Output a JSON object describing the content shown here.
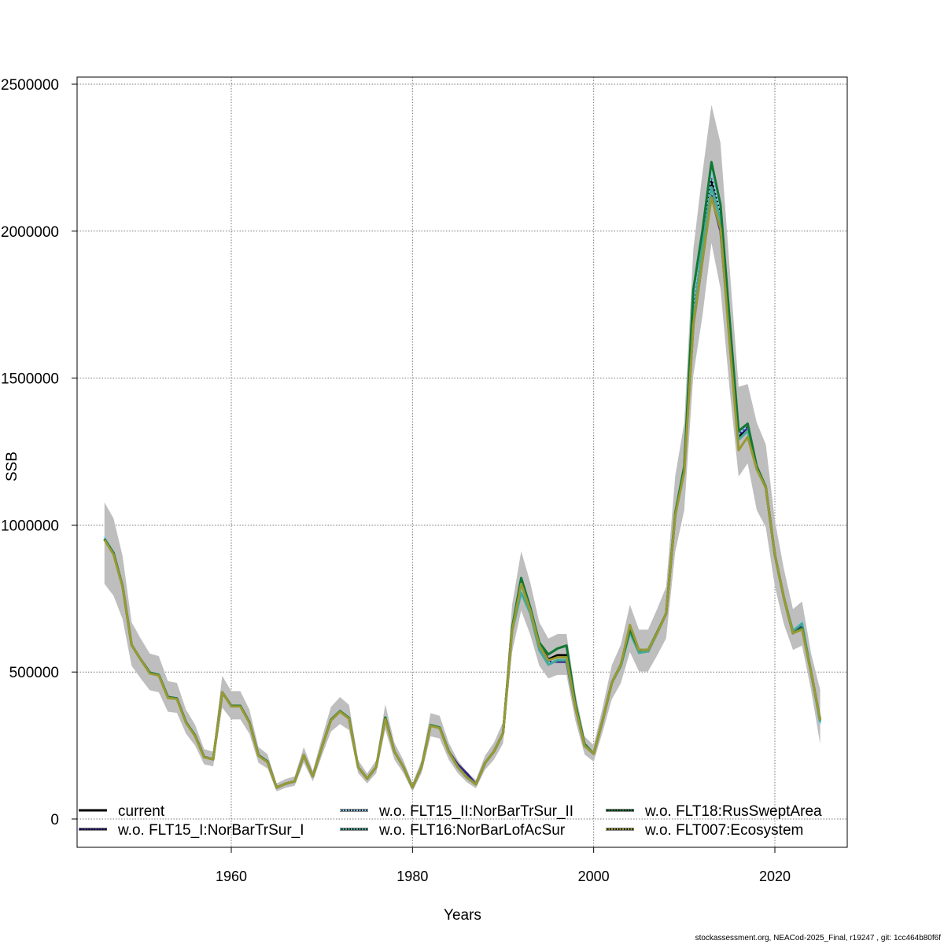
{
  "chart_data": {
    "type": "line",
    "xlabel": "Years",
    "ylabel": "SSB",
    "xlim": [
      1943,
      2028
    ],
    "ylim": [
      -95000,
      2520000
    ],
    "x_ticks": [
      "1960",
      "1980",
      "2000",
      "2020"
    ],
    "y_ticks": [
      "0",
      "500000",
      "1000000",
      "1500000",
      "2000000",
      "2500000"
    ],
    "grid": true,
    "legend_placement": "bottom",
    "x": [
      1946,
      1947,
      1948,
      1949,
      1950,
      1951,
      1952,
      1953,
      1954,
      1955,
      1956,
      1957,
      1958,
      1959,
      1960,
      1961,
      1962,
      1963,
      1964,
      1965,
      1966,
      1967,
      1968,
      1969,
      1970,
      1971,
      1972,
      1973,
      1974,
      1975,
      1976,
      1977,
      1978,
      1979,
      1980,
      1981,
      1982,
      1983,
      1984,
      1985,
      1986,
      1987,
      1988,
      1989,
      1990,
      1991,
      1992,
      1993,
      1994,
      1995,
      1996,
      1997,
      1998,
      1999,
      2000,
      2001,
      2002,
      2003,
      2004,
      2005,
      2006,
      2007,
      2008,
      2009,
      2010,
      2011,
      2012,
      2013,
      2014,
      2015,
      2016,
      2017,
      2018,
      2019,
      2020,
      2021,
      2022,
      2023,
      2024,
      2025
    ],
    "confidence_band": {
      "color": "#bebebe",
      "upper": [
        1077000,
        1023000,
        895000,
        669000,
        614000,
        563000,
        554000,
        469000,
        463000,
        372000,
        321000,
        238000,
        229000,
        487000,
        435000,
        435000,
        372000,
        245000,
        220000,
        121000,
        136000,
        145000,
        245000,
        164000,
        276000,
        381000,
        415000,
        388000,
        200000,
        155000,
        200000,
        390000,
        260000,
        200000,
        121000,
        200000,
        360000,
        351000,
        260000,
        200000,
        160000,
        133000,
        215000,
        260000,
        330000,
        729000,
        911000,
        805000,
        669000,
        614000,
        629000,
        629000,
        426000,
        281000,
        251000,
        381000,
        523000,
        593000,
        729000,
        644000,
        644000,
        714000,
        790000,
        1167000,
        1349000,
        1939000,
        2196000,
        2430000,
        2300000,
        1878000,
        1470000,
        1480000,
        1349000,
        1274000,
        1016000,
        850000,
        714000,
        740000,
        563000,
        440000
      ],
      "lower": [
        800000,
        760000,
        680000,
        521000,
        478000,
        438000,
        431000,
        365000,
        361000,
        290000,
        250000,
        186000,
        179000,
        379000,
        339000,
        339000,
        290000,
        191000,
        172000,
        94000,
        106000,
        113000,
        191000,
        128000,
        215000,
        297000,
        323000,
        302000,
        156000,
        121000,
        156000,
        304000,
        202000,
        156000,
        94000,
        156000,
        281000,
        274000,
        202000,
        156000,
        125000,
        104000,
        167000,
        202000,
        257000,
        568000,
        709000,
        627000,
        521000,
        478000,
        490000,
        490000,
        332000,
        219000,
        195000,
        297000,
        407000,
        462000,
        568000,
        502000,
        502000,
        556000,
        615000,
        909000,
        1051000,
        1510000,
        1710000,
        1960000,
        1804000,
        1463000,
        1165000,
        1210000,
        1051000,
        992000,
        791000,
        662000,
        575000,
        590000,
        438000,
        255000
      ]
    },
    "series": [
      {
        "name": "current",
        "color": "#000000",
        "dash": "solid",
        "values": [
          953000,
          905000,
          792000,
          592000,
          543000,
          498000,
          490000,
          415000,
          410000,
          329000,
          284000,
          211000,
          203000,
          431000,
          385000,
          385000,
          329000,
          217000,
          195000,
          107000,
          120000,
          128000,
          217000,
          145000,
          244000,
          337000,
          367000,
          343000,
          177000,
          137000,
          177000,
          345000,
          230000,
          177000,
          107000,
          177000,
          319000,
          311000,
          230000,
          177000,
          142000,
          118000,
          190000,
          230000,
          292000,
          645000,
          806000,
          712000,
          592000,
          543000,
          557000,
          557000,
          377000,
          249000,
          222000,
          337000,
          463000,
          525000,
          645000,
          570000,
          570000,
          632000,
          699000,
          1033000,
          1194000,
          1716000,
          1943000,
          2176000,
          2050000,
          1662000,
          1301000,
          1333000,
          1194000,
          1127000,
          899000,
          752000,
          632000,
          650000,
          498000,
          337000
        ]
      },
      {
        "name": "w.o. FLT15_I:NorBarTrSur_I",
        "color": "#332288",
        "dash": "solid",
        "values": [
          953000,
          905000,
          792000,
          592000,
          543000,
          498000,
          490000,
          415000,
          410000,
          329000,
          284000,
          211000,
          203000,
          431000,
          385000,
          385000,
          329000,
          217000,
          195000,
          107000,
          120000,
          128000,
          217000,
          145000,
          244000,
          337000,
          367000,
          343000,
          177000,
          137000,
          177000,
          345000,
          230000,
          177000,
          107000,
          177000,
          319000,
          311000,
          230000,
          185000,
          155000,
          118000,
          190000,
          230000,
          292000,
          645000,
          806000,
          712000,
          592000,
          535000,
          535000,
          535000,
          377000,
          249000,
          222000,
          337000,
          463000,
          525000,
          645000,
          570000,
          570000,
          632000,
          699000,
          1033000,
          1194000,
          1680000,
          1900000,
          2120000,
          2000000,
          1640000,
          1310000,
          1330000,
          1194000,
          1127000,
          899000,
          752000,
          632000,
          660000,
          498000,
          337000
        ]
      },
      {
        "name": "w.o. FLT15_II:NorBarTrSur_II",
        "color": "#88CCEE",
        "dash": "dotted",
        "values": [
          960000,
          905000,
          792000,
          592000,
          543000,
          498000,
          490000,
          415000,
          410000,
          329000,
          284000,
          211000,
          203000,
          431000,
          385000,
          385000,
          329000,
          217000,
          195000,
          107000,
          120000,
          128000,
          217000,
          145000,
          244000,
          337000,
          367000,
          343000,
          177000,
          137000,
          177000,
          345000,
          230000,
          177000,
          107000,
          177000,
          319000,
          311000,
          230000,
          177000,
          142000,
          118000,
          190000,
          230000,
          292000,
          640000,
          790000,
          705000,
          580000,
          530000,
          545000,
          545000,
          377000,
          249000,
          222000,
          337000,
          463000,
          525000,
          640000,
          565000,
          570000,
          632000,
          699000,
          1033000,
          1194000,
          1740000,
          1990000,
          2200000,
          2060000,
          1680000,
          1310000,
          1340000,
          1194000,
          1127000,
          899000,
          752000,
          640000,
          670000,
          498000,
          320000
        ]
      },
      {
        "name": "w.o. FLT16:NorBarLofAcSur",
        "color": "#44AA99",
        "dash": "solid",
        "values": [
          953000,
          905000,
          792000,
          592000,
          543000,
          498000,
          490000,
          415000,
          410000,
          329000,
          284000,
          211000,
          203000,
          431000,
          385000,
          385000,
          329000,
          217000,
          195000,
          107000,
          120000,
          128000,
          217000,
          145000,
          244000,
          337000,
          367000,
          343000,
          177000,
          137000,
          177000,
          345000,
          230000,
          177000,
          107000,
          177000,
          319000,
          311000,
          230000,
          177000,
          142000,
          118000,
          190000,
          230000,
          292000,
          640000,
          770000,
          700000,
          575000,
          525000,
          540000,
          540000,
          377000,
          249000,
          222000,
          337000,
          463000,
          520000,
          635000,
          565000,
          570000,
          632000,
          699000,
          1033000,
          1194000,
          1700000,
          1950000,
          2150000,
          2040000,
          1650000,
          1290000,
          1320000,
          1194000,
          1127000,
          899000,
          752000,
          640000,
          665000,
          498000,
          330000
        ]
      },
      {
        "name": "w.o. FLT18:RusSweptArea",
        "color": "#117733",
        "dash": "solid",
        "values": [
          953000,
          905000,
          792000,
          592000,
          543000,
          498000,
          490000,
          415000,
          410000,
          329000,
          284000,
          211000,
          203000,
          431000,
          385000,
          385000,
          329000,
          217000,
          195000,
          107000,
          120000,
          128000,
          217000,
          145000,
          244000,
          337000,
          367000,
          343000,
          177000,
          137000,
          177000,
          345000,
          230000,
          177000,
          107000,
          177000,
          319000,
          311000,
          230000,
          177000,
          142000,
          118000,
          190000,
          230000,
          292000,
          650000,
          820000,
          720000,
          600000,
          560000,
          580000,
          590000,
          390000,
          255000,
          222000,
          337000,
          463000,
          525000,
          645000,
          575000,
          575000,
          635000,
          699000,
          1040000,
          1200000,
          1800000,
          2000000,
          2235000,
          2090000,
          1700000,
          1320000,
          1345000,
          1200000,
          1130000,
          899000,
          752000,
          632000,
          650000,
          498000,
          337000
        ]
      },
      {
        "name": "w.o. FLT007:Ecosystem",
        "color": "#999933",
        "dash": "solid",
        "values": [
          950000,
          900000,
          790000,
          592000,
          543000,
          495000,
          488000,
          412000,
          408000,
          327000,
          282000,
          210000,
          203000,
          431000,
          383000,
          383000,
          327000,
          215000,
          193000,
          107000,
          120000,
          128000,
          217000,
          145000,
          244000,
          335000,
          365000,
          341000,
          177000,
          137000,
          177000,
          340000,
          230000,
          177000,
          107000,
          177000,
          317000,
          309000,
          228000,
          177000,
          142000,
          118000,
          190000,
          230000,
          292000,
          640000,
          800000,
          710000,
          590000,
          540000,
          550000,
          550000,
          377000,
          249000,
          222000,
          337000,
          463000,
          525000,
          660000,
          575000,
          575000,
          632000,
          699000,
          1033000,
          1180000,
          1680000,
          1900000,
          2115000,
          2010000,
          1620000,
          1255000,
          1300000,
          1190000,
          1127000,
          899000,
          752000,
          632000,
          645000,
          498000,
          337000
        ]
      }
    ]
  },
  "footer": "stockassessment.org, NEACod-2025_Final, r19247 , git: 1cc464b80f6f"
}
